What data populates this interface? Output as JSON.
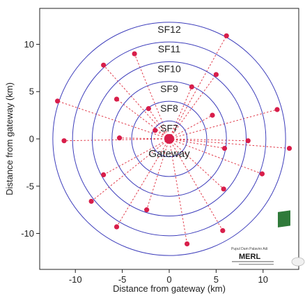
{
  "chart_data": {
    "type": "scatter",
    "xlabel": "Distance from gateway (km)",
    "ylabel": "Distance from gateway (km)",
    "xlim": [
      -13.8,
      13.8
    ],
    "ylim": [
      -13.8,
      13.8
    ],
    "xticks": [
      -10,
      -5,
      0,
      5,
      10
    ],
    "yticks": [
      10,
      5,
      0,
      -5,
      -10
    ],
    "tick_labels": {
      "x": [
        "-10",
        "-5",
        "0",
        "5",
        "10"
      ],
      "y": [
        "10",
        "5",
        "0",
        "-5",
        "-10"
      ]
    },
    "grid": false,
    "rings": [
      {
        "label": "SF7",
        "radius": 1.9
      },
      {
        "label": "SF8",
        "radius": 4.0
      },
      {
        "label": "SF9",
        "radius": 6.1
      },
      {
        "label": "SF10",
        "radius": 8.2
      },
      {
        "label": "SF11",
        "radius": 10.3
      },
      {
        "label": "SF12",
        "radius": 12.4
      }
    ],
    "gateway": {
      "label": "Gateway",
      "x": 0,
      "y": 0
    },
    "nodes": [
      {
        "x": -1.5,
        "y": 0.9
      },
      {
        "x": -2.2,
        "y": 3.2
      },
      {
        "x": 2.4,
        "y": 5.5
      },
      {
        "x": 4.6,
        "y": 2.5
      },
      {
        "x": 5.9,
        "y": -1.0
      },
      {
        "x": 5.8,
        "y": -5.3
      },
      {
        "x": -5.3,
        "y": 0.1
      },
      {
        "x": -2.4,
        "y": -7.5
      },
      {
        "x": -5.6,
        "y": 4.2
      },
      {
        "x": 8.4,
        "y": -0.2
      },
      {
        "x": 9.9,
        "y": -3.7
      },
      {
        "x": 5.7,
        "y": -9.7
      },
      {
        "x": -7.0,
        "y": -3.8
      },
      {
        "x": 5.0,
        "y": 6.8
      },
      {
        "x": -3.7,
        "y": 9.0
      },
      {
        "x": 11.5,
        "y": 3.1
      },
      {
        "x": -8.3,
        "y": -6.6
      },
      {
        "x": 12.8,
        "y": -1.0
      },
      {
        "x": 1.9,
        "y": -11.1
      },
      {
        "x": -11.2,
        "y": -0.2
      },
      {
        "x": -7.0,
        "y": 7.8
      },
      {
        "x": -5.6,
        "y": -9.3
      },
      {
        "x": 6.1,
        "y": 10.9
      },
      {
        "x": -11.9,
        "y": 4.0
      }
    ]
  },
  "logo": {
    "brand": "MERL",
    "caption": "Pupul Dam Palaviro Adi"
  },
  "colors": {
    "ring": "#3d3dbb",
    "node": "#d81e4a",
    "link": "#e03a4a",
    "axis": "#222222",
    "logo_box": "#2f7a3a"
  }
}
